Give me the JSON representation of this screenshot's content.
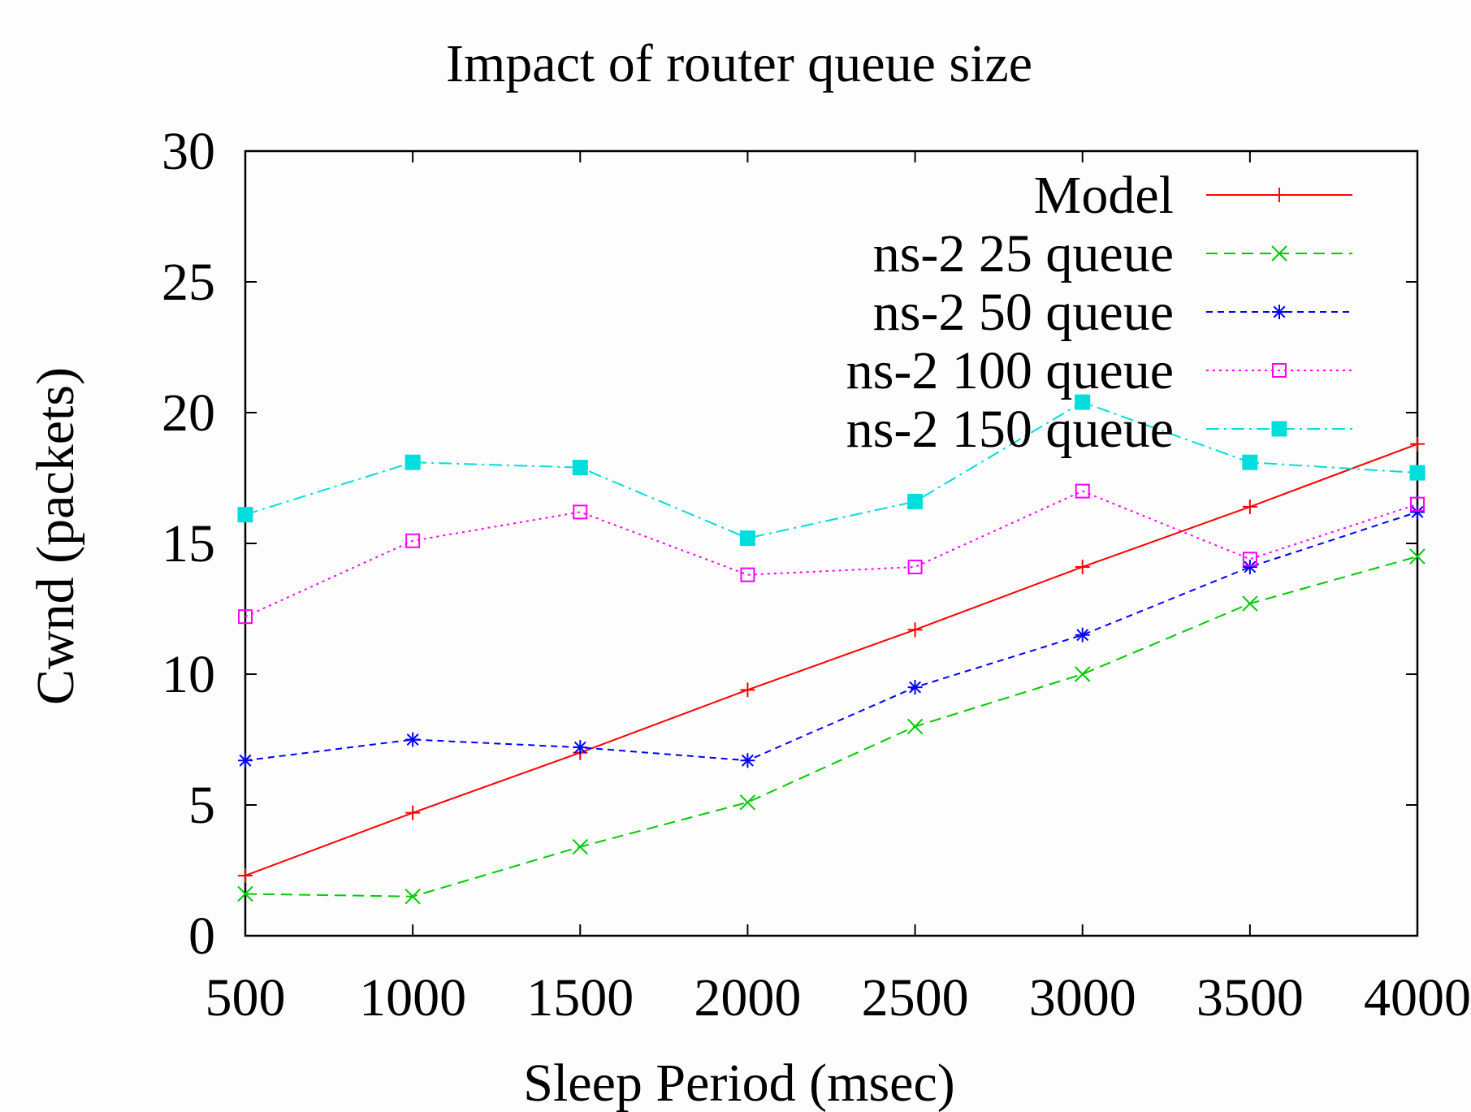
{
  "chart_data": {
    "type": "line",
    "title": "Impact of router queue size",
    "xlabel": "Sleep Period (msec)",
    "ylabel": "Cwnd (packets)",
    "x": [
      500,
      1000,
      1500,
      2000,
      2500,
      3000,
      3500,
      4000
    ],
    "xlim": [
      500,
      4000
    ],
    "ylim": [
      0,
      30
    ],
    "xticks": [
      "500",
      "1000",
      "1500",
      "2000",
      "2500",
      "3000",
      "3500",
      "4000"
    ],
    "yticks": [
      "0",
      "5",
      "10",
      "15",
      "20",
      "25",
      "30"
    ],
    "grid": false,
    "legend_position": "top-right",
    "series": [
      {
        "name": "Model",
        "values": [
          2.3,
          4.7,
          7.0,
          9.4,
          11.7,
          14.1,
          16.4,
          18.8
        ],
        "color": "#ff0000",
        "marker": "plus",
        "dash": "solid"
      },
      {
        "name": "ns-2 25 queue",
        "values": [
          1.6,
          1.5,
          3.4,
          5.1,
          8.0,
          10.0,
          12.7,
          14.5
        ],
        "color": "#00cc00",
        "marker": "cross",
        "dash": "dashed"
      },
      {
        "name": "ns-2 50 queue",
        "values": [
          6.7,
          7.5,
          7.2,
          6.7,
          9.5,
          11.5,
          14.1,
          16.2
        ],
        "color": "#0000ff",
        "marker": "asterisk",
        "dash": "short-dashed"
      },
      {
        "name": "ns-2 100 queue",
        "values": [
          12.2,
          15.1,
          16.2,
          13.8,
          14.1,
          17.0,
          14.4,
          16.5
        ],
        "color": "#ff00ff",
        "marker": "open-square",
        "dash": "dotted"
      },
      {
        "name": "ns-2 150 queue",
        "values": [
          16.1,
          18.1,
          17.9,
          15.2,
          16.6,
          20.4,
          18.1,
          17.7
        ],
        "color": "#00dddd",
        "marker": "filled-square",
        "dash": "dash-dot"
      }
    ]
  }
}
